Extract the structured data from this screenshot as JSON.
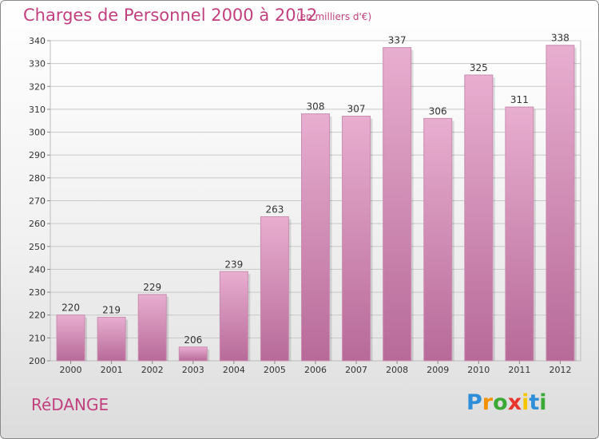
{
  "header": {
    "title": "Charges de Personnel 2000 à 2012",
    "unit": "(en milliers d'€)"
  },
  "footer": {
    "commune": "RéDANGE",
    "logo_letters": [
      {
        "char": "P",
        "color": "#2e8fd8"
      },
      {
        "char": "r",
        "color": "#f39200"
      },
      {
        "char": "o",
        "color": "#3aa935"
      },
      {
        "char": "x",
        "color": "#e8352e"
      },
      {
        "char": "i",
        "color": "#f7c600"
      },
      {
        "char": "t",
        "color": "#2e8fd8"
      },
      {
        "char": "i",
        "color": "#3aa935"
      }
    ]
  },
  "colors": {
    "accent": "#c2407e",
    "bar_light": "#e8aed0",
    "bar_dark": "#b76a98"
  },
  "chart_data": {
    "type": "bar",
    "title": "Charges de Personnel 2000 à 2012",
    "subtitle": "(en milliers d'€)",
    "categories": [
      "2000",
      "2001",
      "2002",
      "2003",
      "2004",
      "2005",
      "2006",
      "2007",
      "2008",
      "2009",
      "2010",
      "2011",
      "2012"
    ],
    "values": [
      220,
      219,
      229,
      206,
      239,
      263,
      308,
      307,
      337,
      306,
      325,
      311,
      338
    ],
    "ylim": [
      200,
      340
    ],
    "yticks": [
      200,
      210,
      220,
      230,
      240,
      250,
      260,
      270,
      280,
      290,
      300,
      310,
      320,
      330,
      340
    ],
    "grid": true
  }
}
